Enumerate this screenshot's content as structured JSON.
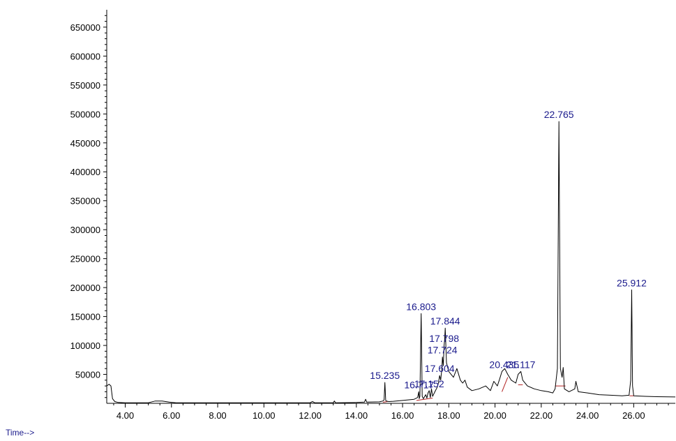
{
  "chart_data": {
    "type": "line",
    "title": "",
    "xlabel": "Time-->",
    "ylabel": "",
    "xlim": [
      3.2,
      27.8
    ],
    "ylim": [
      0,
      680000
    ],
    "xticks": [
      4,
      6,
      8,
      10,
      12,
      14,
      16,
      18,
      20,
      22,
      24,
      26
    ],
    "xtick_labels": [
      "4.00",
      "6.00",
      "8.00",
      "10.00",
      "12.00",
      "14.00",
      "16.00",
      "18.00",
      "20.00",
      "22.00",
      "24.00",
      "26.00"
    ],
    "yticks": [
      50000,
      100000,
      150000,
      200000,
      250000,
      300000,
      350000,
      400000,
      450000,
      500000,
      550000,
      600000,
      650000
    ],
    "ytick_labels": [
      "50000",
      "100000",
      "150000",
      "200000",
      "250000",
      "300000",
      "350000",
      "400000",
      "450000",
      "500000",
      "550000",
      "600000",
      "650000"
    ],
    "grid": false,
    "colors": {
      "trace": "#000000",
      "label": "#1a1a8c",
      "baseline": "#b22222"
    },
    "series": [
      {
        "x": [
          3.2,
          3.3,
          3.38,
          3.45,
          3.55,
          3.7,
          4.0,
          5.0,
          5.3,
          5.6,
          5.9,
          6.2,
          7.0,
          8.0,
          9.0,
          10.0,
          11.0,
          12.0,
          12.1,
          12.2,
          13.0,
          13.05,
          13.1,
          14.0,
          14.35,
          14.4,
          14.45,
          15.0,
          15.15,
          15.2,
          15.235,
          15.27,
          15.3,
          15.4,
          15.6,
          16.0,
          16.5,
          16.65,
          16.7,
          16.72,
          16.75,
          16.803,
          16.85,
          16.9,
          17.0,
          17.05,
          17.1,
          17.152,
          17.2,
          17.25,
          17.3,
          17.4,
          17.5,
          17.55,
          17.604,
          17.65,
          17.7,
          17.724,
          17.76,
          17.798,
          17.82,
          17.844,
          17.9,
          18.0,
          18.2,
          18.35,
          18.5,
          18.6,
          18.7,
          18.8,
          19.0,
          19.3,
          19.6,
          19.8,
          19.95,
          20.1,
          20.2,
          20.3,
          20.42,
          20.55,
          20.7,
          20.9,
          21.0,
          21.117,
          21.2,
          21.4,
          21.7,
          22.0,
          22.3,
          22.5,
          22.6,
          22.7,
          22.765,
          22.83,
          22.9,
          22.95,
          23.0,
          23.2,
          23.45,
          23.5,
          23.6,
          24.0,
          24.5,
          25.0,
          25.5,
          25.8,
          25.87,
          25.912,
          25.95,
          26.0,
          26.5,
          27.0,
          27.8
        ],
        "y": [
          30000,
          33000,
          30000,
          8000,
          3000,
          1500,
          1000,
          1000,
          4000,
          4000,
          2000,
          1000,
          1000,
          1000,
          1000,
          1000,
          1000,
          1000,
          3000,
          1000,
          1000,
          4000,
          1000,
          1500,
          2000,
          7000,
          2000,
          2500,
          4000,
          6000,
          36000,
          5000,
          4000,
          3000,
          3500,
          5000,
          7000,
          10000,
          20000,
          8000,
          12000,
          155000,
          12000,
          8000,
          15000,
          9000,
          18000,
          22000,
          10000,
          25000,
          12000,
          20000,
          28000,
          35000,
          48000,
          40000,
          60000,
          80000,
          65000,
          100000,
          110000,
          130000,
          70000,
          55000,
          45000,
          60000,
          40000,
          35000,
          40000,
          28000,
          22000,
          25000,
          30000,
          22000,
          38000,
          30000,
          42000,
          55000,
          60000,
          50000,
          40000,
          35000,
          50000,
          55000,
          40000,
          30000,
          25000,
          22000,
          20000,
          18000,
          25000,
          60000,
          487000,
          60000,
          45000,
          62000,
          25000,
          20000,
          25000,
          38000,
          20000,
          18000,
          15000,
          14000,
          13000,
          14000,
          40000,
          196000,
          30000,
          13000,
          12000,
          11500,
          11000
        ]
      }
    ],
    "peak_labels": [
      {
        "x": 15.235,
        "y": 36000,
        "text": "15.235"
      },
      {
        "x": 16.717,
        "y": 20000,
        "text": "16.717"
      },
      {
        "x": 16.803,
        "y": 155000,
        "text": "16.803"
      },
      {
        "x": 17.152,
        "y": 22000,
        "text": "17.152"
      },
      {
        "x": 17.604,
        "y": 48000,
        "text": "17.604"
      },
      {
        "x": 17.724,
        "y": 80000,
        "text": "17.724"
      },
      {
        "x": 17.798,
        "y": 100000,
        "text": "17.798"
      },
      {
        "x": 17.844,
        "y": 130000,
        "text": "17.844"
      },
      {
        "x": 20.4,
        "y": 55000,
        "text": "20.435"
      },
      {
        "x": 21.117,
        "y": 55000,
        "text": "21.117"
      },
      {
        "x": 22.765,
        "y": 487000,
        "text": "22.765"
      },
      {
        "x": 25.912,
        "y": 196000,
        "text": "25.912"
      }
    ],
    "integration_baselines": [
      {
        "x": [
          15.15,
          15.35
        ],
        "y": [
          2000,
          3000
        ]
      },
      {
        "x": [
          16.6,
          17.3
        ],
        "y": [
          5000,
          9000
        ]
      },
      {
        "x": [
          20.3,
          20.55
        ],
        "y": [
          20000,
          45000
        ]
      },
      {
        "x": [
          21.0,
          21.2
        ],
        "y": [
          32000,
          32000
        ]
      },
      {
        "x": [
          22.6,
          23.05
        ],
        "y": [
          30000,
          30000
        ]
      },
      {
        "x": [
          25.82,
          26.0
        ],
        "y": [
          13000,
          13000
        ]
      }
    ]
  }
}
